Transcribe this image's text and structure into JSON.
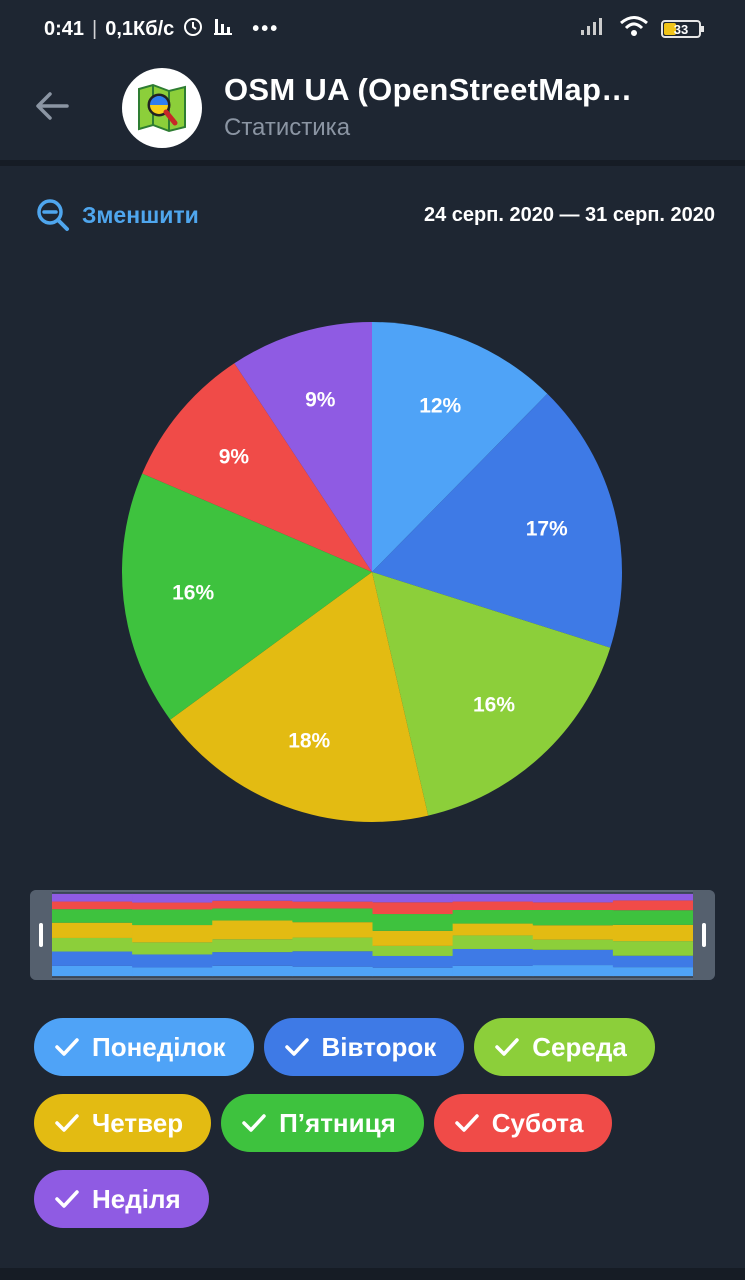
{
  "status_bar": {
    "time": "0:41",
    "speed": "0,1Кб/с",
    "battery": "33",
    "icons": [
      "alarm-icon",
      "stats-icon",
      "more-icon",
      "signal-icon",
      "wifi-icon",
      "battery-icon"
    ]
  },
  "header": {
    "title": "OSM UA (OpenStreetMap…",
    "subtitle": "Статистика"
  },
  "toolbar": {
    "zoom_label": "Зменшити",
    "date_range": "24 серп. 2020 — 31 серп. 2020"
  },
  "chart_data": {
    "type": "pie",
    "title": "",
    "slices": [
      {
        "name": "Понеділок",
        "value": 12,
        "label": "12%",
        "color": "#4fa3f7"
      },
      {
        "name": "Вівторок",
        "value": 17,
        "label": "17%",
        "color": "#3e7ae6"
      },
      {
        "name": "Середа",
        "value": 16,
        "label": "16%",
        "color": "#8ccf3a"
      },
      {
        "name": "Четвер",
        "value": 18,
        "label": "18%",
        "color": "#e3bb12"
      },
      {
        "name": "П’ятниця",
        "value": 16,
        "label": "16%",
        "color": "#3ec23e"
      },
      {
        "name": "Субота",
        "value": 9,
        "label": "9%",
        "color": "#f04b48"
      },
      {
        "name": "Неділя",
        "value": 9,
        "label": "9%",
        "color": "#8f5be3"
      }
    ],
    "navigator": {
      "days": 8,
      "stack": [
        [
          12,
          17,
          16,
          18,
          16,
          9,
          9
        ],
        [
          10,
          15,
          14,
          20,
          18,
          8,
          10
        ],
        [
          12,
          16,
          15,
          22,
          14,
          9,
          8
        ],
        [
          11,
          18,
          16,
          18,
          16,
          8,
          9
        ],
        [
          10,
          14,
          12,
          18,
          20,
          14,
          10
        ],
        [
          12,
          20,
          16,
          14,
          16,
          10,
          9
        ],
        [
          13,
          18,
          12,
          17,
          18,
          9,
          10
        ],
        [
          11,
          14,
          18,
          20,
          18,
          12,
          8
        ]
      ]
    }
  },
  "legend_chips": [
    {
      "label": "Понеділок",
      "color": "#4fa3f7"
    },
    {
      "label": "Вівторок",
      "color": "#3e7ae6"
    },
    {
      "label": "Середа",
      "color": "#8ccf3a"
    },
    {
      "label": "Четвер",
      "color": "#e3bb12"
    },
    {
      "label": "П’ятниця",
      "color": "#3ec23e"
    },
    {
      "label": "Субота",
      "color": "#f04b48"
    },
    {
      "label": "Неділя",
      "color": "#8f5be3"
    }
  ]
}
